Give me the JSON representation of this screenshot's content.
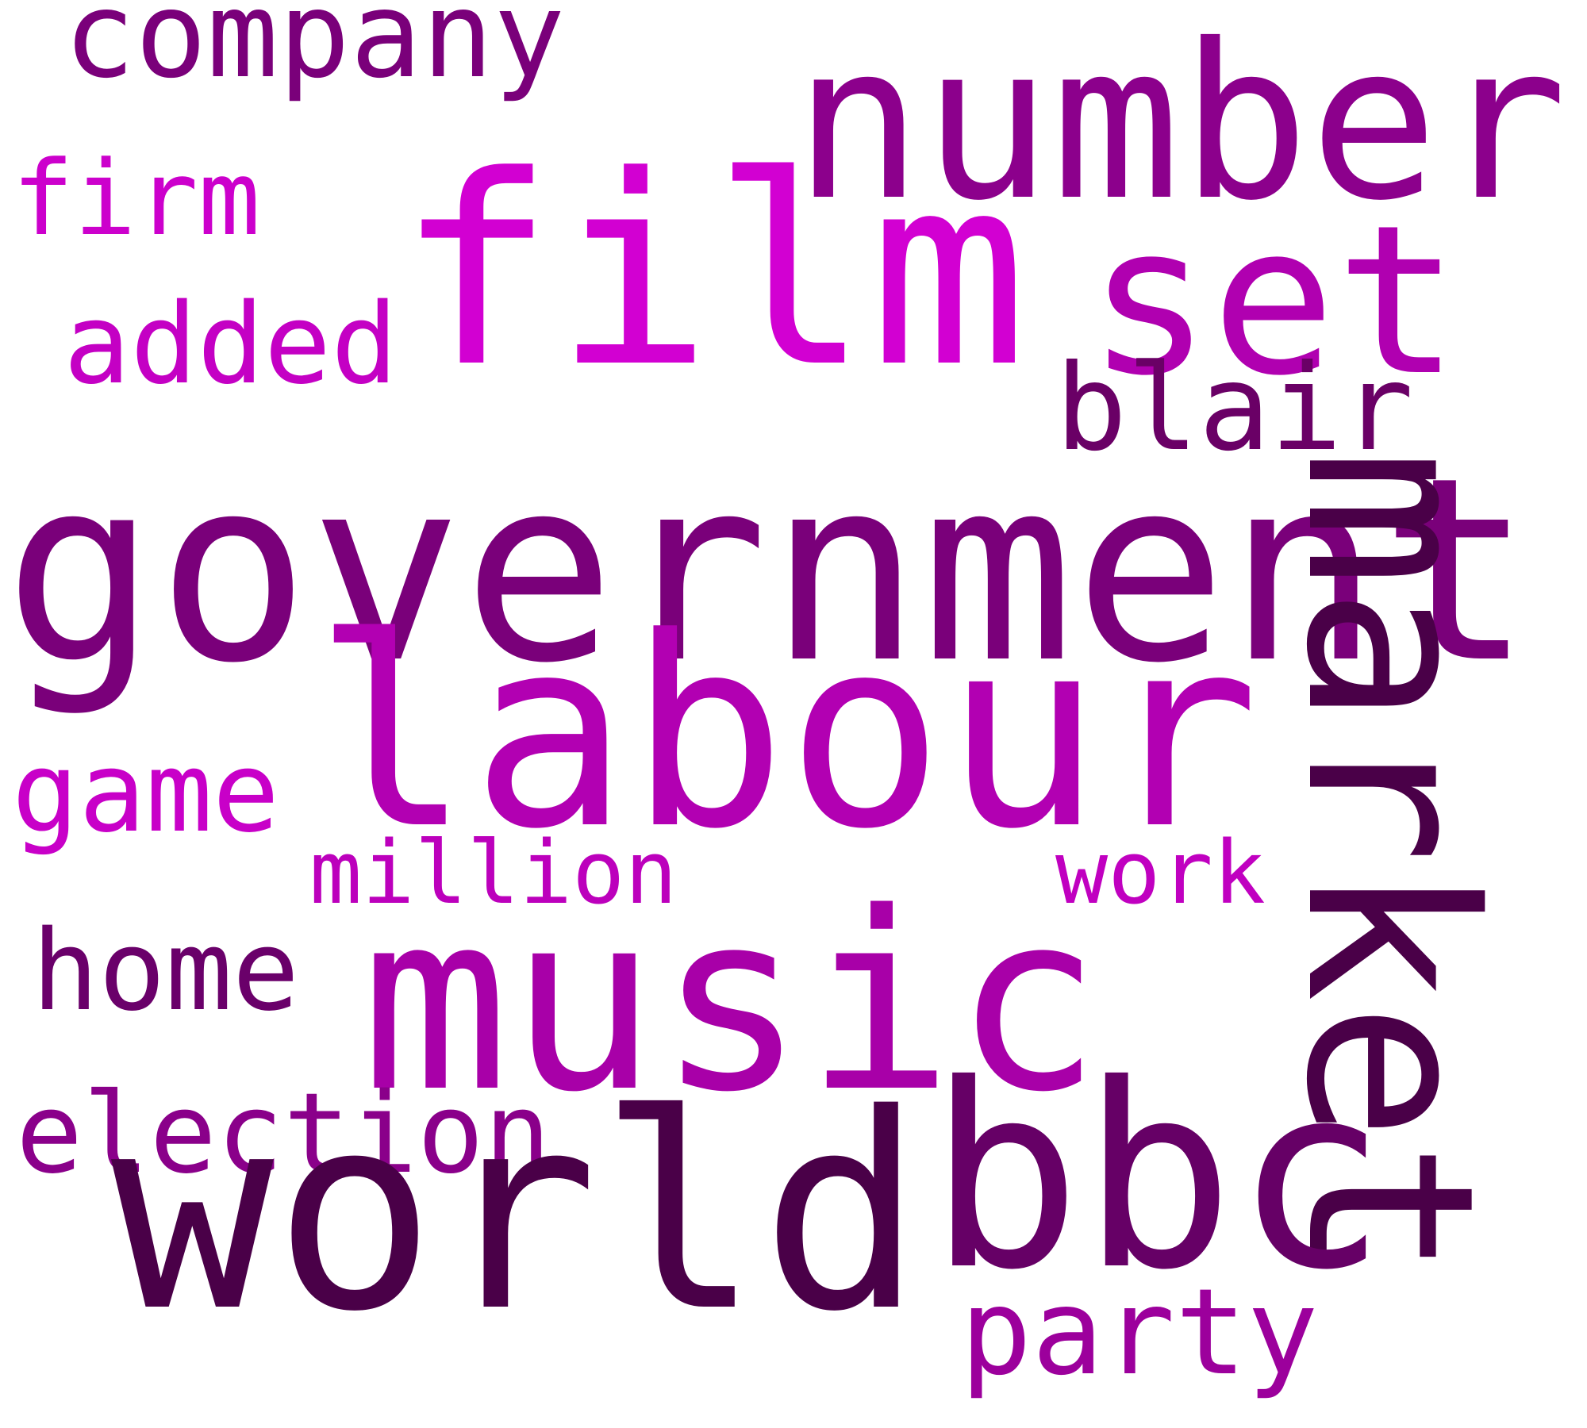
{
  "words": [
    {
      "text": "company",
      "color": "#7a007a"
    },
    {
      "text": "number",
      "color": "#8c008c"
    },
    {
      "text": "firm",
      "color": "#cc00cc"
    },
    {
      "text": "film",
      "color": "#d200d2"
    },
    {
      "text": "set",
      "color": "#b000b0"
    },
    {
      "text": "added",
      "color": "#c400c4"
    },
    {
      "text": "blair",
      "color": "#6a0066"
    },
    {
      "text": "government",
      "color": "#7a007a"
    },
    {
      "text": "labour",
      "color": "#b200b2"
    },
    {
      "text": "market",
      "color": "#4a0048"
    },
    {
      "text": "game",
      "color": "#c800c8"
    },
    {
      "text": "million",
      "color": "#bc00bc"
    },
    {
      "text": "work",
      "color": "#c000c0"
    },
    {
      "text": "home",
      "color": "#6a006a"
    },
    {
      "text": "music",
      "color": "#a800a8"
    },
    {
      "text": "election",
      "color": "#8a008a"
    },
    {
      "text": "world",
      "color": "#4a0048"
    },
    {
      "text": "bbc",
      "color": "#660066"
    },
    {
      "text": "party",
      "color": "#9c009c"
    }
  ]
}
